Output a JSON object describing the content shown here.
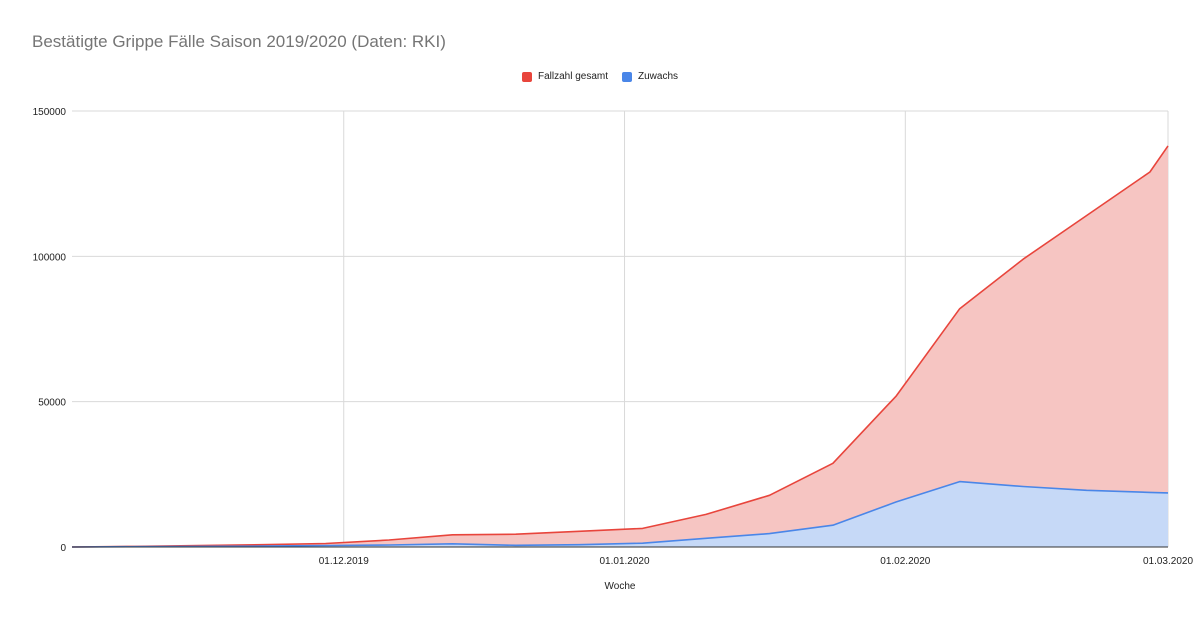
{
  "chart_data": {
    "type": "area",
    "title": "Bestätigte Grippe Fälle Saison 2019/2020 (Daten: RKI)",
    "xlabel": "Woche",
    "ylabel": "",
    "ylim": [
      0,
      150000
    ],
    "yticks": [
      "0",
      "50000",
      "100000",
      "150000"
    ],
    "xticks": [
      "01.12.2019",
      "01.01.2020",
      "01.02.2020",
      "01.03.2020"
    ],
    "xlim": [
      "2019-11-01",
      "2020-03-01"
    ],
    "grid": true,
    "legend_position": "top",
    "x": [
      "2019-11-01",
      "2019-11-08",
      "2019-11-15",
      "2019-11-22",
      "2019-11-29",
      "2019-12-06",
      "2019-12-13",
      "2019-12-20",
      "2019-12-27",
      "2020-01-03",
      "2020-01-10",
      "2020-01-17",
      "2020-01-24",
      "2020-01-31",
      "2020-02-07",
      "2020-02-14",
      "2020-02-21",
      "2020-02-28",
      "2020-03-01"
    ],
    "series": [
      {
        "name": "Fallzahl gesamt",
        "color": "#e8453c",
        "fill": "#f6c5c2",
        "values": [
          0,
          200,
          500,
          800,
          1200,
          2400,
          4200,
          4400,
          5400,
          6400,
          11200,
          17800,
          28800,
          52000,
          82000,
          99000,
          114000,
          129000,
          138000
        ]
      },
      {
        "name": "Zuwachs",
        "color": "#4a86e8",
        "fill": "#c6d9f7",
        "values": [
          0,
          100,
          200,
          300,
          500,
          700,
          1100,
          600,
          800,
          1300,
          3000,
          4600,
          7500,
          15500,
          22500,
          20800,
          19500,
          18800,
          18600
        ]
      }
    ]
  }
}
